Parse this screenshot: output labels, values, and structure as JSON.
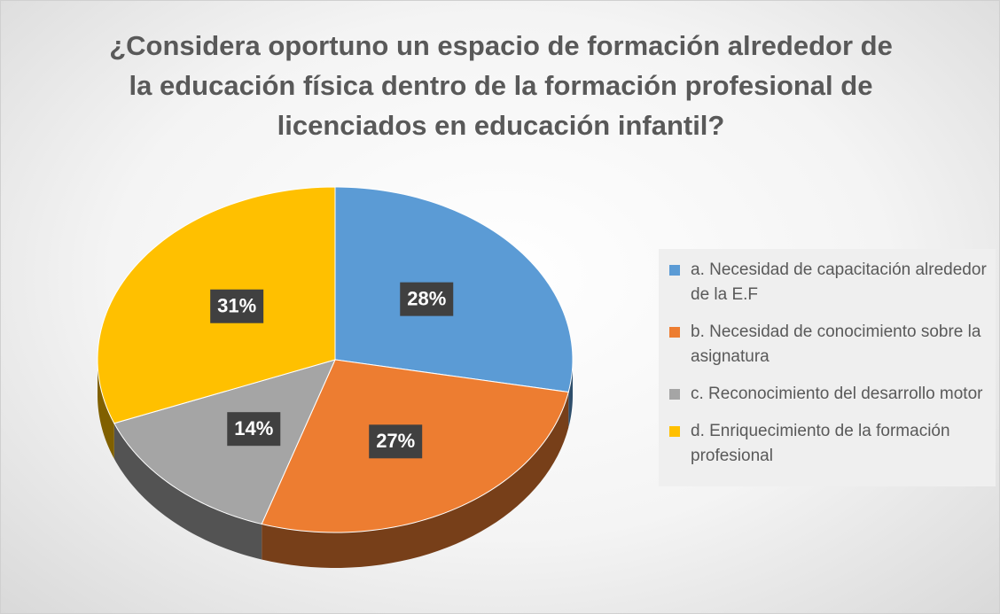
{
  "chart_data": {
    "type": "pie",
    "title": "¿Considera oportuno un espacio de formación alrededor de la educación física dentro de la formación profesional de licenciados en educación infantil?",
    "categories": [
      "a. Necesidad de capacitación alrededor de la E.F",
      "b. Necesidad de conocimiento sobre la asignatura",
      "c. Reconocimiento del desarrollo motor",
      "d. Enriquecimiento de la formación profesional"
    ],
    "values": [
      28,
      27,
      14,
      31
    ],
    "value_labels": [
      "28%",
      "27%",
      "14%",
      "31%"
    ],
    "colors": [
      "#5b9bd5",
      "#ed7d31",
      "#a5a5a5",
      "#ffc000"
    ],
    "legend": "right"
  }
}
